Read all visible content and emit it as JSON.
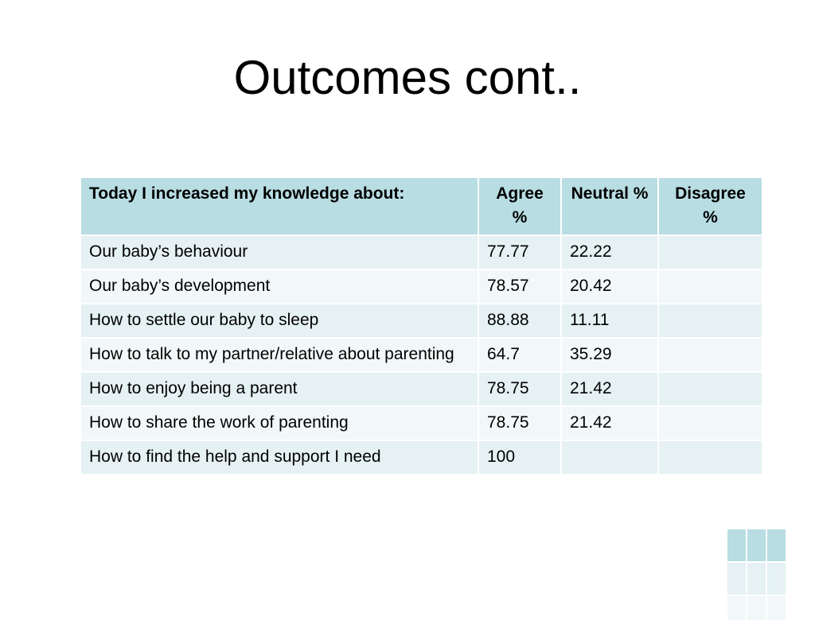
{
  "slide": {
    "title": "Outcomes cont.."
  },
  "table": {
    "headers": {
      "topic": "Today I increased my knowledge about:",
      "agree": "Agree %",
      "neutral": "Neutral %",
      "disagree": "Disagree %"
    },
    "rows": [
      {
        "topic": "Our baby’s behaviour",
        "agree": "77.77",
        "neutral": "22.22",
        "disagree": ""
      },
      {
        "topic": "Our baby’s development",
        "agree": "78.57",
        "neutral": "20.42",
        "disagree": ""
      },
      {
        "topic": "How to settle our baby to sleep",
        "agree": "88.88",
        "neutral": "11.11",
        "disagree": ""
      },
      {
        "topic": "How to talk to my partner/relative about parenting",
        "agree": "64.7",
        "neutral": "35.29",
        "disagree": ""
      },
      {
        "topic": "How to enjoy being a parent",
        "agree": "78.75",
        "neutral": "21.42",
        "disagree": ""
      },
      {
        "topic": "How to share the work of parenting",
        "agree": "78.75",
        "neutral": "21.42",
        "disagree": ""
      },
      {
        "topic": "How to find the help and support I need",
        "agree": "100",
        "neutral": "",
        "disagree": ""
      }
    ]
  },
  "colors": {
    "header_fill": "#b8dde3",
    "row_odd_fill": "#e5f1f3",
    "row_even_fill": "#f2f8f9"
  }
}
